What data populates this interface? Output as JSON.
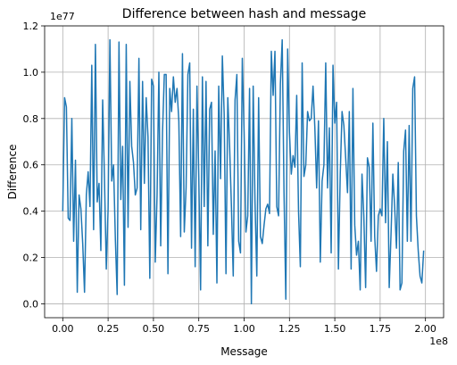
{
  "chart_data": {
    "type": "line",
    "title": "Difference between hash and message",
    "xlabel": "Message",
    "ylabel": "Difference",
    "x_offset_label": "1e8",
    "y_offset_label": "1e77",
    "x_multiplier": 100000000,
    "y_multiplier": 1e+77,
    "xlim": [
      -0.1,
      2.1
    ],
    "ylim": [
      -0.06,
      1.2
    ],
    "x_ticks": [
      0.0,
      0.25,
      0.5,
      0.75,
      1.0,
      1.25,
      1.5,
      1.75,
      2.0
    ],
    "x_tick_labels": [
      "0.00",
      "0.25",
      "0.50",
      "0.75",
      "1.00",
      "1.25",
      "1.50",
      "1.75",
      "2.00"
    ],
    "y_ticks": [
      0.0,
      0.2,
      0.4,
      0.6,
      0.8,
      1.0,
      1.2
    ],
    "y_tick_labels": [
      "0.0",
      "0.2",
      "0.4",
      "0.6",
      "0.8",
      "1.0",
      "1.2"
    ],
    "grid": true,
    "line_color": "#1f77b4",
    "series": [
      {
        "x": [
          0.0,
          0.01,
          0.02,
          0.03,
          0.04,
          0.05,
          0.06,
          0.07,
          0.08,
          0.09,
          0.1,
          0.11,
          0.12,
          0.13,
          0.14,
          0.15,
          0.16,
          0.17,
          0.18,
          0.19,
          0.2,
          0.21,
          0.22,
          0.23,
          0.24,
          0.25,
          0.26,
          0.27,
          0.28,
          0.29,
          0.3,
          0.31,
          0.32,
          0.33,
          0.34,
          0.35,
          0.36,
          0.37,
          0.38,
          0.39,
          0.4,
          0.41,
          0.42,
          0.43,
          0.44,
          0.45,
          0.46,
          0.47,
          0.48,
          0.49,
          0.5,
          0.51,
          0.52,
          0.53,
          0.54,
          0.55,
          0.56,
          0.57,
          0.58,
          0.59,
          0.6,
          0.61,
          0.62,
          0.63,
          0.64,
          0.65,
          0.66,
          0.67,
          0.68,
          0.69,
          0.7,
          0.71,
          0.72,
          0.73,
          0.74,
          0.75,
          0.76,
          0.77,
          0.78,
          0.79,
          0.8,
          0.81,
          0.82,
          0.83,
          0.84,
          0.85,
          0.86,
          0.87,
          0.88,
          0.89,
          0.9,
          0.91,
          0.92,
          0.93,
          0.94,
          0.95,
          0.96,
          0.97,
          0.98,
          0.99,
          1.0,
          1.01,
          1.02,
          1.03,
          1.04,
          1.05,
          1.06,
          1.07,
          1.08,
          1.09,
          1.1,
          1.11,
          1.12,
          1.13,
          1.14,
          1.15,
          1.16,
          1.17,
          1.18,
          1.19,
          1.2,
          1.21,
          1.22,
          1.23,
          1.24,
          1.25,
          1.26,
          1.27,
          1.28,
          1.29,
          1.3,
          1.31,
          1.32,
          1.33,
          1.34,
          1.35,
          1.36,
          1.37,
          1.38,
          1.39,
          1.4,
          1.41,
          1.42,
          1.43,
          1.44,
          1.45,
          1.46,
          1.47,
          1.48,
          1.49,
          1.5,
          1.51,
          1.52,
          1.53,
          1.54,
          1.55,
          1.56,
          1.57,
          1.58,
          1.59,
          1.6,
          1.61,
          1.62,
          1.63,
          1.64,
          1.65,
          1.66,
          1.67,
          1.68,
          1.69,
          1.7,
          1.71,
          1.72,
          1.73,
          1.74,
          1.75,
          1.76,
          1.77,
          1.78,
          1.79,
          1.8,
          1.81,
          1.82,
          1.83,
          1.84,
          1.85,
          1.86,
          1.87,
          1.88,
          1.89,
          1.9,
          1.91,
          1.92,
          1.93,
          1.94,
          1.95,
          1.96,
          1.97,
          1.98,
          1.99
        ],
        "y": [
          0.4,
          0.89,
          0.85,
          0.37,
          0.36,
          0.8,
          0.27,
          0.62,
          0.05,
          0.47,
          0.41,
          0.26,
          0.05,
          0.47,
          0.57,
          0.42,
          1.03,
          0.32,
          1.12,
          0.44,
          0.52,
          0.23,
          0.88,
          0.54,
          0.15,
          0.41,
          1.14,
          0.53,
          0.6,
          0.28,
          0.04,
          1.13,
          0.45,
          0.68,
          0.08,
          1.12,
          0.33,
          0.96,
          0.68,
          0.61,
          0.47,
          0.5,
          1.06,
          0.32,
          0.96,
          0.52,
          0.89,
          0.72,
          0.11,
          0.97,
          0.94,
          0.18,
          0.47,
          1.0,
          0.25,
          0.74,
          0.99,
          0.99,
          0.13,
          0.93,
          0.83,
          0.98,
          0.87,
          0.93,
          0.79,
          0.29,
          1.08,
          0.31,
          0.5,
          0.99,
          1.04,
          0.24,
          0.84,
          0.16,
          0.94,
          0.55,
          0.06,
          0.98,
          0.42,
          0.96,
          0.25,
          0.84,
          0.87,
          0.3,
          0.66,
          0.09,
          0.94,
          0.54,
          1.07,
          0.82,
          0.13,
          0.89,
          0.68,
          0.42,
          0.12,
          0.88,
          0.99,
          0.27,
          0.22,
          1.06,
          0.74,
          0.31,
          0.38,
          0.93,
          0.0,
          0.94,
          0.44,
          0.12,
          0.89,
          0.29,
          0.26,
          0.34,
          0.41,
          0.43,
          0.39,
          1.09,
          0.9,
          1.09,
          0.42,
          0.38,
          0.95,
          1.14,
          0.48,
          0.02,
          1.1,
          0.74,
          0.56,
          0.64,
          0.59,
          0.9,
          0.4,
          0.16,
          1.04,
          0.55,
          0.6,
          0.83,
          0.79,
          0.8,
          0.94,
          0.76,
          0.5,
          0.79,
          0.18,
          0.53,
          0.6,
          1.04,
          0.5,
          0.76,
          0.22,
          1.03,
          0.78,
          0.87,
          0.15,
          0.56,
          0.83,
          0.77,
          0.63,
          0.48,
          0.83,
          0.15,
          0.93,
          0.34,
          0.21,
          0.27,
          0.06,
          0.56,
          0.38,
          0.07,
          0.63,
          0.59,
          0.27,
          0.78,
          0.29,
          0.14,
          0.38,
          0.41,
          0.38,
          0.8,
          0.35,
          0.7,
          0.07,
          0.3,
          0.56,
          0.42,
          0.24,
          0.61,
          0.06,
          0.09,
          0.66,
          0.75,
          0.27,
          0.77,
          0.27,
          0.93,
          0.98,
          0.38,
          0.23,
          0.12,
          0.09,
          0.23
        ]
      }
    ]
  }
}
